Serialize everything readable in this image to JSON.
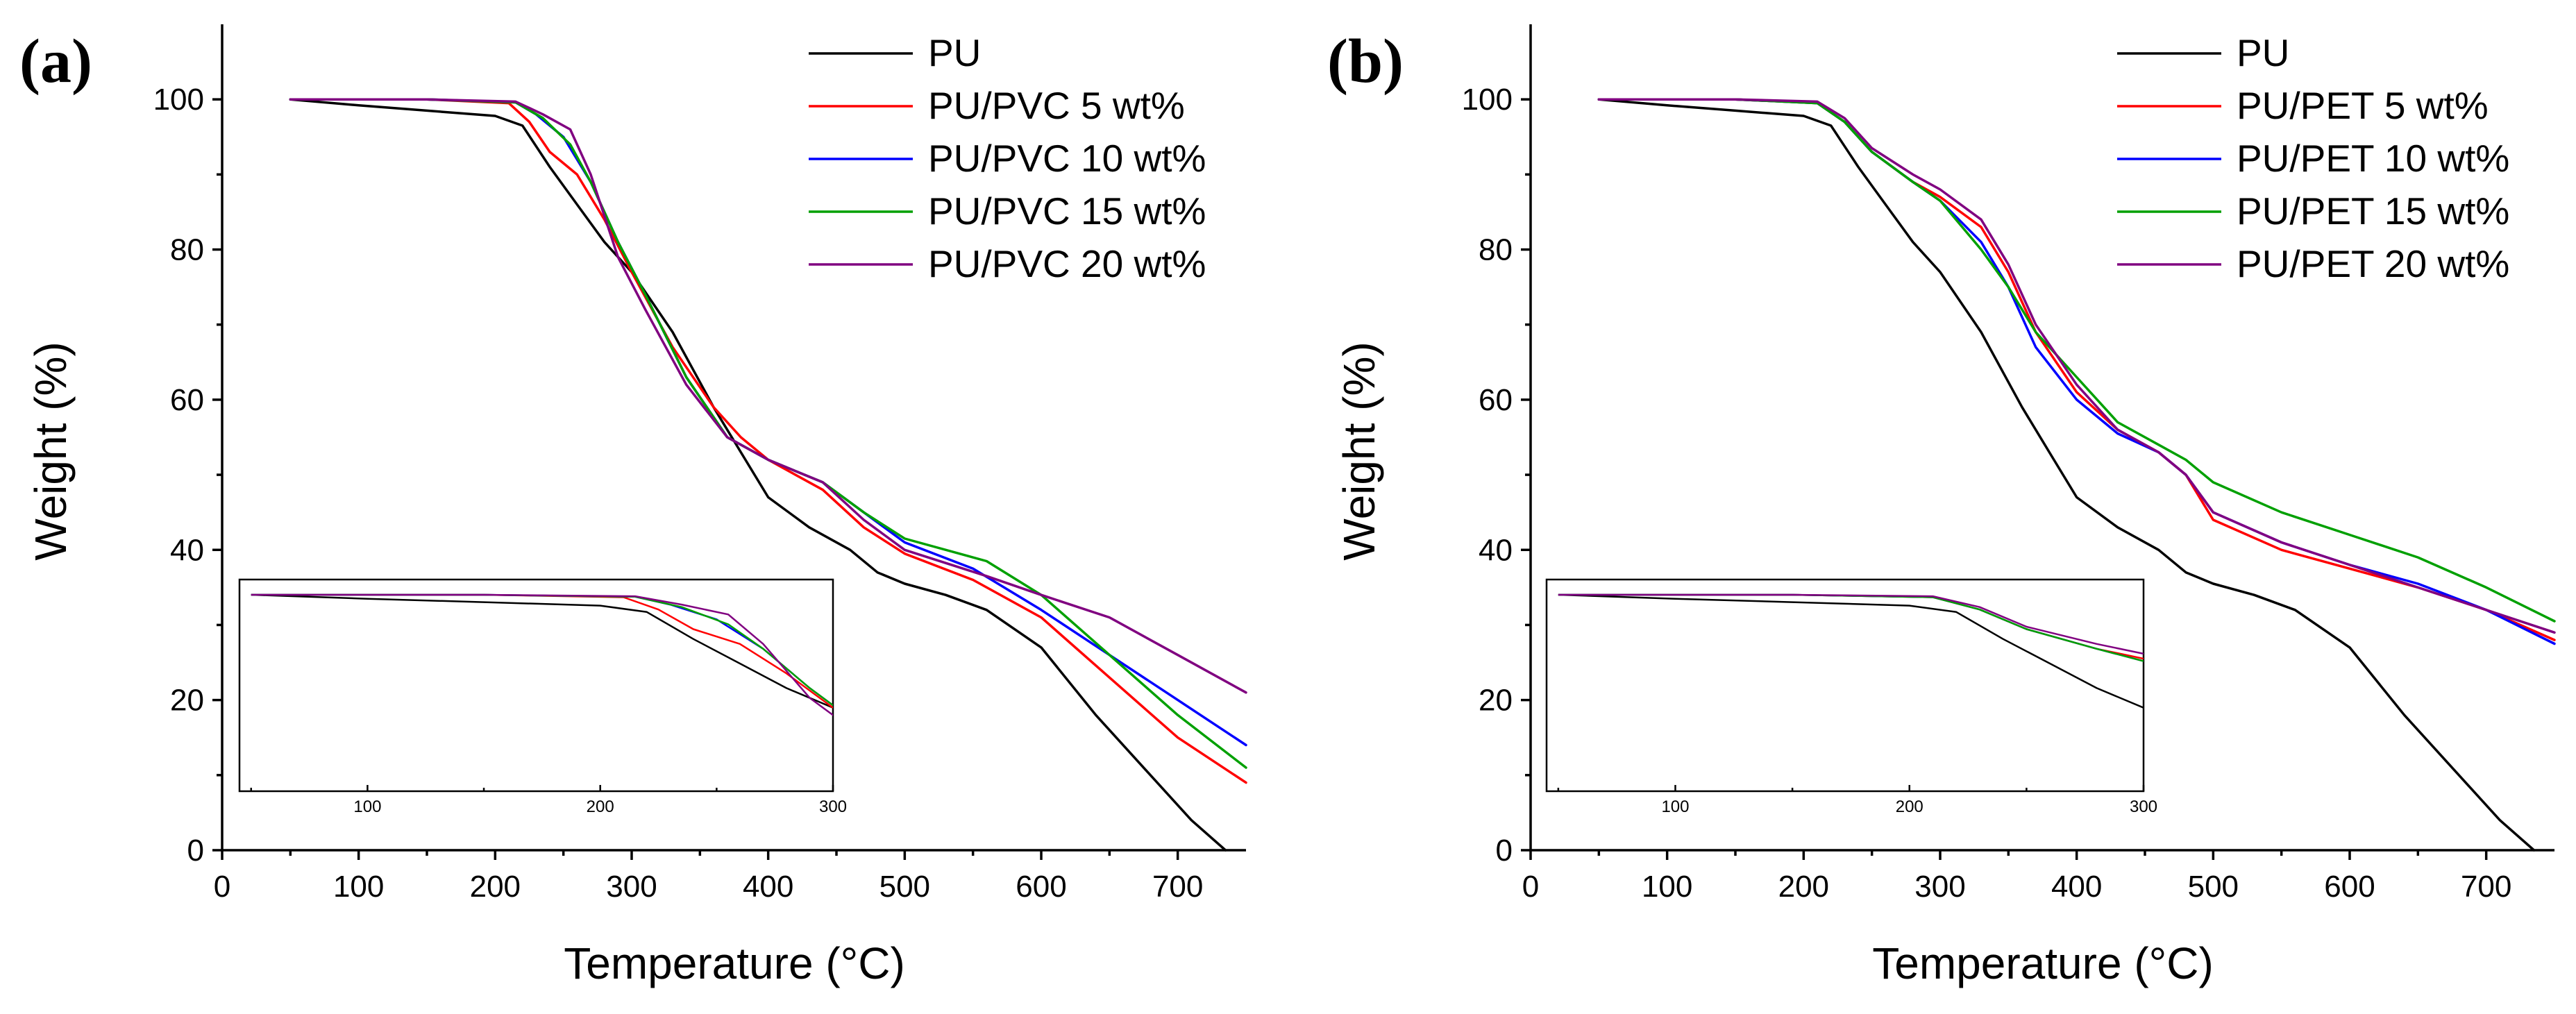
{
  "chart_data": [
    {
      "panel_label": "(a)",
      "type": "line",
      "title": "",
      "xlabel": "Temperature (°C)",
      "ylabel": "Weight (%)",
      "xlim": [
        0,
        750
      ],
      "ylim": [
        0,
        110
      ],
      "xticks": [
        0,
        100,
        200,
        300,
        400,
        500,
        600,
        700
      ],
      "yticks": [
        0,
        20,
        40,
        60,
        80,
        100
      ],
      "legend_position": "top-right",
      "series": [
        {
          "name": "PU",
          "color": "#000000",
          "x": [
            50,
            100,
            150,
            200,
            220,
            240,
            260,
            280,
            300,
            330,
            360,
            380,
            400,
            430,
            460,
            480,
            500,
            530,
            560,
            600,
            640,
            680,
            710,
            735
          ],
          "y": [
            100,
            99.2,
            98.5,
            97.8,
            96.5,
            91,
            86,
            81,
            77,
            69,
            59,
            53,
            47,
            43,
            40,
            37,
            35.5,
            34,
            32,
            27,
            18,
            10,
            4,
            0
          ]
        },
        {
          "name": "PU/PVC 5 wt%",
          "color": "#ff0000",
          "x": [
            50,
            150,
            210,
            225,
            240,
            260,
            280,
            300,
            330,
            360,
            380,
            400,
            440,
            470,
            500,
            550,
            600,
            650,
            700,
            750
          ],
          "y": [
            100,
            100,
            99.5,
            97,
            93,
            90,
            84,
            77,
            67,
            59,
            55,
            52,
            48,
            43,
            39.5,
            36,
            31,
            23,
            15,
            9
          ]
        },
        {
          "name": "PU/PVC 10 wt%",
          "color": "#0000ff",
          "x": [
            50,
            150,
            215,
            230,
            250,
            270,
            290,
            310,
            340,
            370,
            400,
            440,
            470,
            500,
            550,
            600,
            650,
            700,
            750
          ],
          "y": [
            100,
            100,
            99.6,
            98,
            95,
            89,
            81,
            74,
            63,
            55,
            52,
            49,
            45,
            41,
            37.5,
            32,
            26,
            20,
            14
          ]
        },
        {
          "name": "PU/PVC 15 wt%",
          "color": "#00a000",
          "x": [
            50,
            150,
            215,
            235,
            255,
            270,
            290,
            310,
            340,
            370,
            400,
            440,
            470,
            500,
            560,
            600,
            650,
            700,
            750
          ],
          "y": [
            100,
            100,
            99.6,
            97.5,
            94,
            89,
            81,
            74,
            63,
            55,
            52,
            49,
            45,
            41.5,
            38.5,
            34,
            26,
            18,
            11
          ]
        },
        {
          "name": "PU/PVC 20 wt%",
          "color": "#800080",
          "x": [
            50,
            150,
            215,
            235,
            255,
            270,
            290,
            310,
            340,
            370,
            400,
            440,
            470,
            500,
            560,
            600,
            650,
            700,
            750
          ],
          "y": [
            100,
            100,
            99.7,
            98,
            96,
            90,
            79,
            72,
            62,
            55,
            52,
            49,
            44,
            40,
            36.5,
            34,
            31,
            26,
            21
          ]
        }
      ],
      "inset": {
        "xlim": [
          45,
          300
        ],
        "ylim": [
          0,
          100
        ],
        "xticks": [
          100,
          200,
          300
        ]
      }
    },
    {
      "panel_label": "(b)",
      "type": "line",
      "title": "",
      "xlabel": "Temperature (°C)",
      "ylabel": "Weight (%)",
      "xlim": [
        0,
        750
      ],
      "ylim": [
        0,
        110
      ],
      "xticks": [
        0,
        100,
        200,
        300,
        400,
        500,
        600,
        700
      ],
      "yticks": [
        0,
        20,
        40,
        60,
        80,
        100
      ],
      "legend_position": "top-right",
      "series": [
        {
          "name": "PU",
          "color": "#000000",
          "x": [
            50,
            100,
            150,
            200,
            220,
            240,
            260,
            280,
            300,
            330,
            360,
            380,
            400,
            430,
            460,
            480,
            500,
            530,
            560,
            600,
            640,
            680,
            710,
            735
          ],
          "y": [
            100,
            99.2,
            98.5,
            97.8,
            96.5,
            91,
            86,
            81,
            77,
            69,
            59,
            53,
            47,
            43,
            40,
            37,
            35.5,
            34,
            32,
            27,
            18,
            10,
            4,
            0
          ]
        },
        {
          "name": "PU/PET 5 wt%",
          "color": "#ff0000",
          "x": [
            50,
            150,
            210,
            230,
            250,
            280,
            300,
            330,
            350,
            370,
            400,
            430,
            460,
            480,
            500,
            550,
            600,
            650,
            700,
            750
          ],
          "y": [
            100,
            100,
            99.5,
            97,
            93,
            89,
            87,
            83,
            77,
            69,
            61,
            56,
            53,
            50,
            44,
            40,
            37.5,
            35,
            32,
            28
          ]
        },
        {
          "name": "PU/PET 10 wt%",
          "color": "#0000ff",
          "x": [
            50,
            150,
            210,
            230,
            250,
            280,
            300,
            330,
            350,
            370,
            400,
            430,
            460,
            480,
            500,
            550,
            600,
            650,
            700,
            750
          ],
          "y": [
            100,
            100,
            99.5,
            97,
            93,
            89,
            86.5,
            81,
            75,
            67,
            60,
            55.5,
            53,
            50,
            45,
            41,
            38,
            35.5,
            32,
            27.5
          ]
        },
        {
          "name": "PU/PET 15 wt%",
          "color": "#00a000",
          "x": [
            50,
            150,
            210,
            230,
            250,
            280,
            300,
            330,
            350,
            370,
            400,
            430,
            460,
            480,
            500,
            550,
            600,
            650,
            700,
            750
          ],
          "y": [
            100,
            100,
            99.5,
            97,
            93,
            89,
            86.5,
            80,
            75,
            69,
            63,
            57,
            54,
            52,
            49,
            45,
            42,
            39,
            35,
            30.5
          ]
        },
        {
          "name": "PU/PET 20 wt%",
          "color": "#800080",
          "x": [
            50,
            150,
            210,
            230,
            250,
            280,
            300,
            330,
            350,
            370,
            400,
            430,
            460,
            480,
            500,
            550,
            600,
            650,
            700,
            750
          ],
          "y": [
            100,
            100,
            99.7,
            97.5,
            93.5,
            90,
            88,
            84,
            78,
            70,
            62,
            56,
            53,
            50,
            45,
            41,
            38,
            35,
            32,
            29
          ]
        }
      ],
      "inset": {
        "xlim": [
          45,
          300
        ],
        "ylim": [
          0,
          100
        ],
        "xticks": [
          100,
          200,
          300
        ]
      }
    }
  ]
}
